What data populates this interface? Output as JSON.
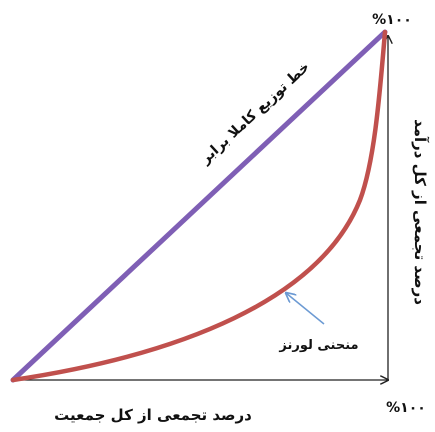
{
  "diagram": {
    "title": "",
    "top_percent_label": "%۱۰۰",
    "bottom_percent_label": "%۱۰۰",
    "equality_line_label": "خط توزیع کاملا برابر",
    "lorenz_curve_label": "منحنی لورنز",
    "x_axis_label": "درصد تجمعی از کل جمعیت",
    "y_axis_label": "درصد تجمعی از کل درآمد",
    "colors": {
      "equality_line": "#7F5FB5",
      "lorenz_curve": "#C0504D",
      "axes": "#222222",
      "pointer_arrow": "#6C9AD3"
    }
  }
}
